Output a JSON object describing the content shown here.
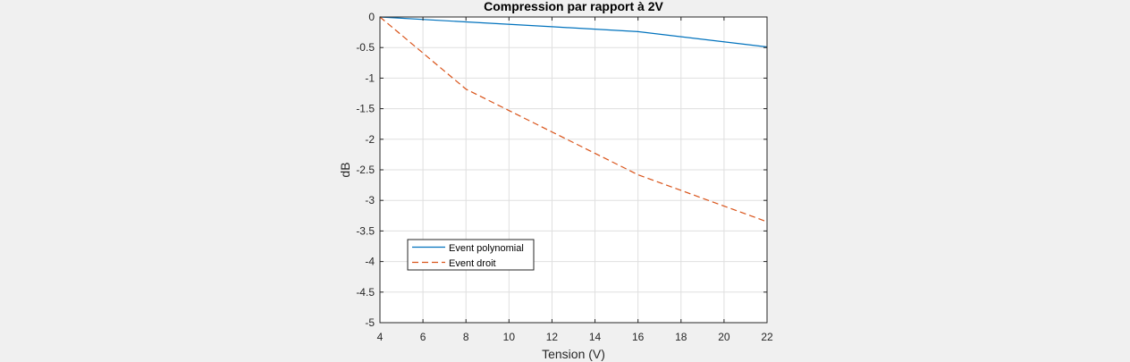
{
  "chart_data": {
    "type": "line",
    "title": "Compression par rapport à 2V",
    "xlabel": "Tension (V)",
    "ylabel": "dB",
    "xlim": [
      4,
      22
    ],
    "ylim": [
      -5,
      0
    ],
    "xticks": [
      4,
      6,
      8,
      10,
      12,
      14,
      16,
      18,
      20,
      22
    ],
    "yticks": [
      0,
      -0.5,
      -1,
      -1.5,
      -2,
      -2.5,
      -3,
      -3.5,
      -4,
      -4.5,
      -5
    ],
    "xtick_labels": [
      "4",
      "6",
      "8",
      "10",
      "12",
      "14",
      "16",
      "18",
      "20",
      "22"
    ],
    "ytick_labels": [
      "0",
      "-0.5",
      "-1",
      "-1.5",
      "-2",
      "-2.5",
      "-3",
      "-3.5",
      "-4",
      "-4.5",
      "-5"
    ],
    "grid": true,
    "legend_position": "bottom-left",
    "series": [
      {
        "name": "Event polynomial",
        "color": "#0072bd",
        "dash": "solid",
        "x": [
          4,
          8,
          12,
          16,
          22
        ],
        "y": [
          0,
          -0.08,
          -0.16,
          -0.24,
          -0.49
        ]
      },
      {
        "name": "Event droit",
        "color": "#d95319",
        "dash": "dashed",
        "x": [
          4,
          8,
          12,
          16,
          22
        ],
        "y": [
          0,
          -1.18,
          -1.88,
          -2.58,
          -3.35
        ]
      }
    ]
  }
}
